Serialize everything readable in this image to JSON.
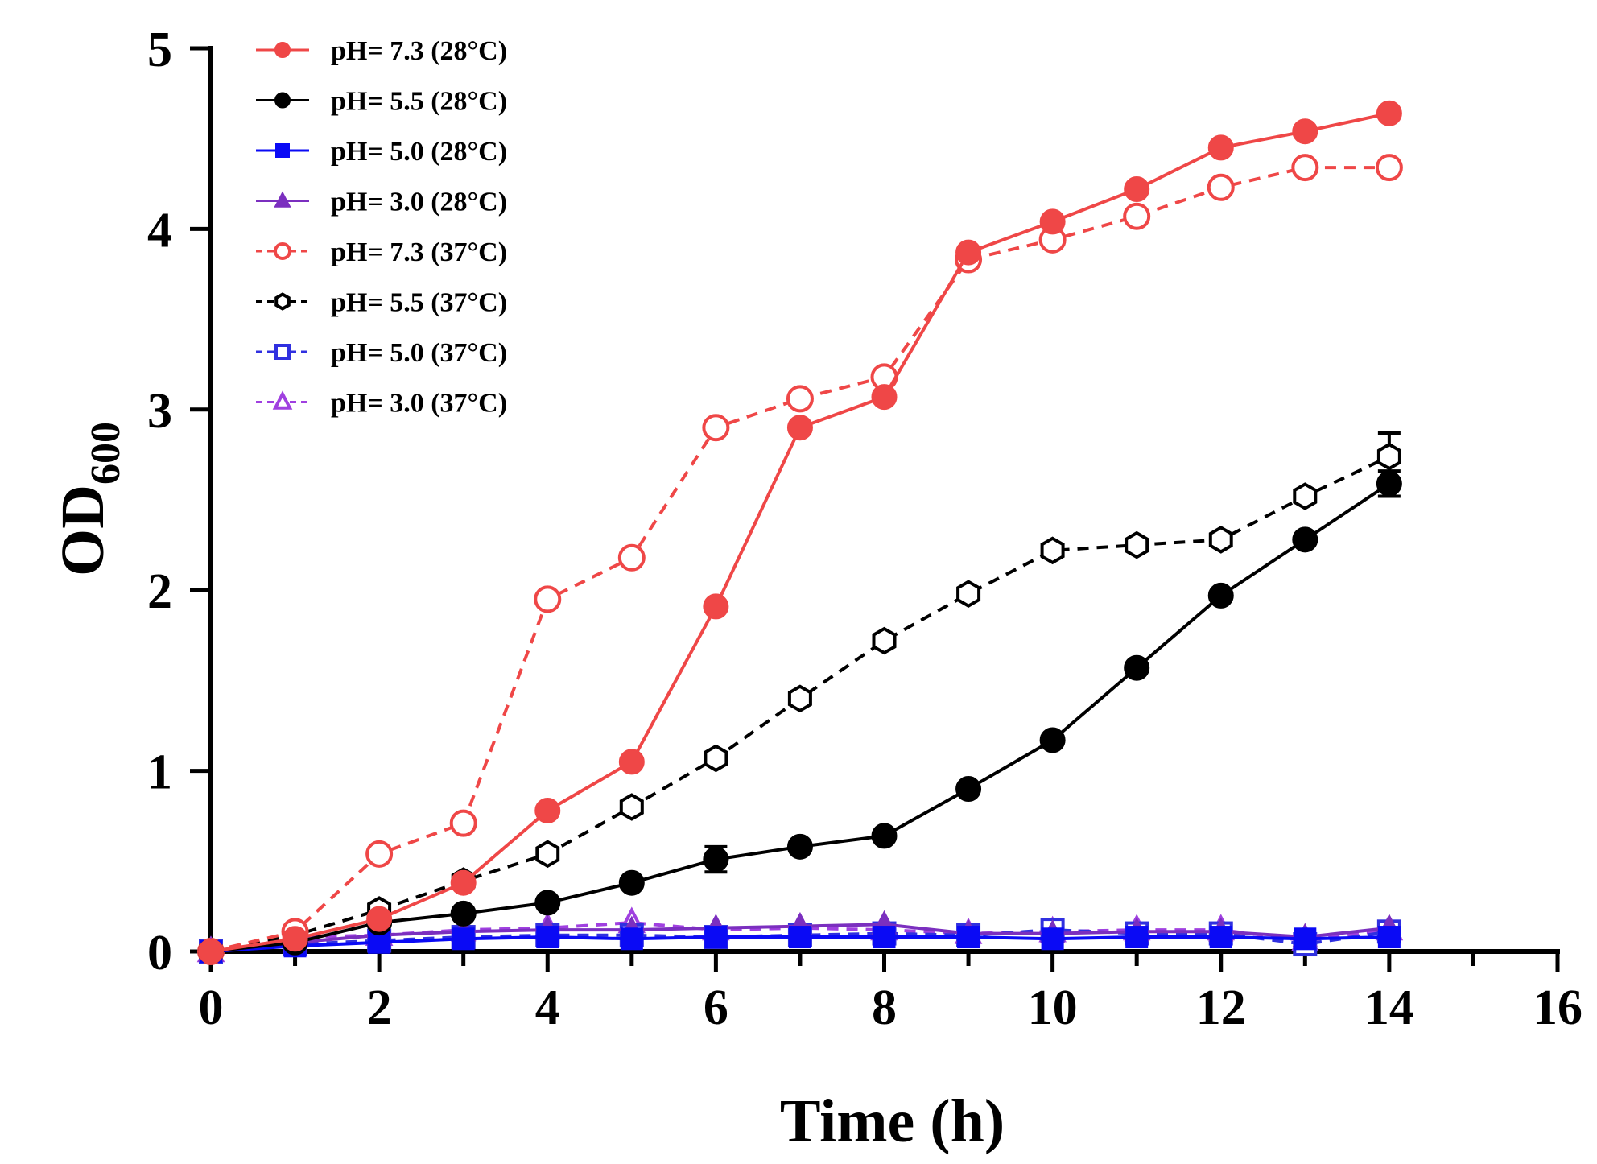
{
  "chart_data": {
    "type": "line",
    "title": "",
    "xlabel": "Time (h)",
    "ylabel": "OD",
    "ylabel_subscript": "600",
    "xlim": [
      0,
      16
    ],
    "ylim": [
      0,
      5
    ],
    "x_ticks": [
      0,
      2,
      4,
      6,
      8,
      10,
      12,
      14,
      16
    ],
    "x_tick_labels": [
      "0",
      "2",
      "4",
      "6",
      "8",
      "10",
      "12",
      "14",
      "16"
    ],
    "y_ticks": [
      0,
      1,
      2,
      3,
      4,
      5
    ],
    "y_tick_labels": [
      "0",
      "1",
      "2",
      "3",
      "4",
      "5"
    ],
    "grid": false,
    "legend_position": "top-left",
    "x": [
      0,
      1,
      2,
      3,
      4,
      5,
      6,
      7,
      8,
      9,
      10,
      11,
      12,
      13,
      14
    ],
    "series": [
      {
        "name": "pH= 7.3 (28°C)",
        "color": "#ef4747",
        "marker": "circle",
        "filled": true,
        "dashed": false,
        "values": [
          0,
          0.07,
          0.18,
          0.38,
          0.78,
          1.05,
          1.91,
          2.9,
          3.07,
          3.87,
          4.04,
          4.22,
          4.45,
          4.54,
          4.64
        ],
        "errors": [
          0,
          0,
          0,
          0,
          0,
          0,
          0,
          0,
          0,
          0,
          0,
          0,
          0,
          0,
          0
        ]
      },
      {
        "name": "pH= 5.5 (28°C)",
        "color": "#000000",
        "marker": "circle",
        "filled": true,
        "dashed": false,
        "values": [
          0,
          0.05,
          0.16,
          0.21,
          0.27,
          0.38,
          0.51,
          0.58,
          0.64,
          0.9,
          1.17,
          1.57,
          1.97,
          2.28,
          2.59
        ],
        "errors": [
          0,
          0,
          0,
          0,
          0,
          0,
          0.07,
          0,
          0,
          0,
          0,
          0,
          0,
          0,
          0.07
        ]
      },
      {
        "name": "pH= 5.0 (28°C)",
        "color": "#0a0af5",
        "marker": "square",
        "filled": true,
        "dashed": false,
        "values": [
          0,
          0.03,
          0.05,
          0.07,
          0.08,
          0.07,
          0.08,
          0.08,
          0.08,
          0.08,
          0.07,
          0.08,
          0.08,
          0.07,
          0.08
        ],
        "errors": [
          0,
          0,
          0,
          0,
          0,
          0,
          0,
          0,
          0,
          0,
          0,
          0,
          0,
          0,
          0
        ]
      },
      {
        "name": "pH= 3.0 (28°C)",
        "color": "#7b2fbf",
        "marker": "triangle",
        "filled": true,
        "dashed": false,
        "values": [
          0,
          0.05,
          0.09,
          0.11,
          0.12,
          0.12,
          0.13,
          0.14,
          0.15,
          0.1,
          0.1,
          0.11,
          0.11,
          0.08,
          0.13
        ],
        "errors": [
          0,
          0,
          0,
          0,
          0,
          0,
          0,
          0,
          0,
          0,
          0,
          0,
          0,
          0,
          0
        ]
      },
      {
        "name": "pH= 7.3 (37°C)",
        "color": "#ef4747",
        "marker": "circle",
        "filled": false,
        "dashed": true,
        "values": [
          0,
          0.11,
          0.54,
          0.71,
          1.95,
          2.18,
          2.9,
          3.06,
          3.18,
          3.83,
          3.94,
          4.07,
          4.23,
          4.34,
          4.34
        ],
        "errors": [
          0,
          0,
          0,
          0,
          0,
          0,
          0,
          0,
          0,
          0,
          0,
          0,
          0,
          0,
          0
        ]
      },
      {
        "name": "pH= 5.5 (37°C)",
        "color": "#000000",
        "marker": "hexagon",
        "filled": false,
        "dashed": true,
        "values": [
          0,
          0.09,
          0.23,
          0.39,
          0.54,
          0.8,
          1.07,
          1.4,
          1.72,
          1.98,
          2.22,
          2.25,
          2.28,
          2.52,
          2.74
        ],
        "errors": [
          0,
          0,
          0,
          0,
          0,
          0,
          0,
          0,
          0,
          0,
          0,
          0,
          0,
          0,
          0.13
        ]
      },
      {
        "name": "pH= 5.0 (37°C)",
        "color": "#3030e0",
        "marker": "square",
        "filled": false,
        "dashed": true,
        "values": [
          0,
          0.04,
          0.06,
          0.08,
          0.09,
          0.09,
          0.08,
          0.09,
          0.1,
          0.09,
          0.12,
          0.1,
          0.1,
          0.04,
          0.11
        ],
        "errors": [
          0,
          0,
          0,
          0,
          0,
          0,
          0,
          0,
          0,
          0,
          0,
          0,
          0,
          0,
          0
        ]
      },
      {
        "name": "pH= 3.0 (37°C)",
        "color": "#a040e0",
        "marker": "triangle",
        "filled": false,
        "dashed": true,
        "values": [
          0,
          0.08,
          0.09,
          0.12,
          0.13,
          0.16,
          0.12,
          0.13,
          0.12,
          0.1,
          0.11,
          0.12,
          0.12,
          0.06,
          0.12
        ],
        "errors": [
          0,
          0,
          0,
          0,
          0,
          0,
          0,
          0,
          0,
          0,
          0,
          0,
          0,
          0,
          0
        ]
      }
    ]
  }
}
